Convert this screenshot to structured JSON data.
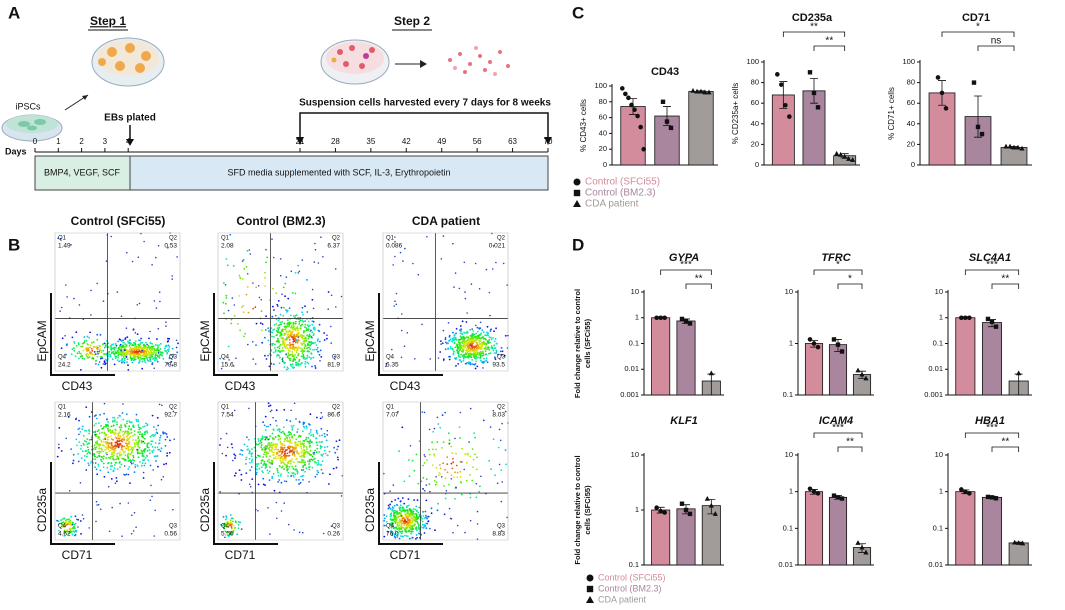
{
  "panel_labels": [
    "A",
    "B",
    "C",
    "D"
  ],
  "panel_a": {
    "step1": "Step 1",
    "step2": "Step 2",
    "ipscs": "iPSCs",
    "ebs": "EBs plated",
    "harvest": "Suspension cells harvested every 7 days for 8 weeks",
    "days_label": "Days",
    "days": [
      0,
      1,
      2,
      3,
      4,
      21,
      28,
      35,
      42,
      49,
      56,
      63,
      70
    ],
    "phase1": "BMP4, VEGF, SCF",
    "phase2": "SFD media supplemented with SCF, IL-3, Erythropoietin"
  },
  "panel_b": {
    "columns": [
      "Control (SFCi55)",
      "Control (BM2.3)",
      "CDA patient"
    ],
    "plots": [
      {
        "x_label": "CD43",
        "y_label": "EpCAM",
        "quadrants": [
          {
            "name": "Q1",
            "value": "1.49"
          },
          {
            "name": "Q2",
            "value": "0.53"
          },
          {
            "name": "Q4",
            "value": "24.2"
          },
          {
            "name": "Q3",
            "value": "73.8"
          }
        ]
      },
      {
        "x_label": "CD43",
        "y_label": "EpCAM",
        "quadrants": [
          {
            "name": "Q1",
            "value": "2.08"
          },
          {
            "name": "Q2",
            "value": "6.37"
          },
          {
            "name": "Q4",
            "value": "15.6"
          },
          {
            "name": "Q3",
            "value": "81.9"
          }
        ]
      },
      {
        "x_label": "CD43",
        "y_label": "EpCAM",
        "quadrants": [
          {
            "name": "Q1",
            "value": "0.086"
          },
          {
            "name": "Q2",
            "value": "0.021"
          },
          {
            "name": "Q4",
            "value": "6.35"
          },
          {
            "name": "Q3",
            "value": "93.5"
          }
        ]
      },
      {
        "x_label": "CD71",
        "y_label": "CD235a",
        "quadrants": [
          {
            "name": "Q1",
            "value": "2.16"
          },
          {
            "name": "Q2",
            "value": "92.7"
          },
          {
            "name": "Q4",
            "value": "4.62"
          },
          {
            "name": "Q3",
            "value": "0.56"
          }
        ]
      },
      {
        "x_label": "CD71",
        "y_label": "CD235a",
        "quadrants": [
          {
            "name": "Q1",
            "value": "7.54"
          },
          {
            "name": "Q2",
            "value": "86.6"
          },
          {
            "name": "Q4",
            "value": "5.56"
          },
          {
            "name": "Q3",
            "value": "0.26"
          }
        ]
      },
      {
        "x_label": "CD71",
        "y_label": "CD235a",
        "quadrants": [
          {
            "name": "Q1",
            "value": "7.07"
          },
          {
            "name": "Q2",
            "value": "8.03"
          },
          {
            "name": "Q4",
            "value": "76.0"
          },
          {
            "name": "Q3",
            "value": "8.83"
          }
        ]
      }
    ]
  },
  "chart_data": [
    {
      "type": "bar",
      "title": "CD43",
      "ylabel": [
        "% CD43+ cells"
      ],
      "ylim": [
        0,
        100
      ],
      "yticks": [
        0,
        20,
        40,
        60,
        80,
        100
      ],
      "series": [
        {
          "name": "Control (SFCi55)",
          "color": "#d38c9c",
          "values": [
            74
          ],
          "errors": [
            10
          ],
          "points": [
            97,
            90,
            85,
            76,
            70,
            62,
            48,
            20
          ]
        },
        {
          "name": "Control (BM2.3)",
          "color": "#a9869e",
          "values": [
            62
          ],
          "errors": [
            12
          ],
          "points": [
            80,
            55,
            47
          ]
        },
        {
          "name": "CDA patient",
          "color": "#a19b99",
          "values": [
            93
          ],
          "errors": [
            1
          ],
          "points": [
            94,
            93,
            93,
            92,
            92
          ]
        }
      ]
    },
    {
      "type": "bar",
      "title": "CD235a",
      "ylabel": [
        "% CD235a+ cells"
      ],
      "ylim": [
        0,
        100
      ],
      "yticks": [
        0,
        20,
        40,
        60,
        80,
        100
      ],
      "significance": [
        {
          "from": 0,
          "to": 2,
          "label": "**"
        },
        {
          "from": 1,
          "to": 2,
          "label": "**"
        }
      ],
      "series": [
        {
          "name": "Control (SFCi55)",
          "color": "#d38c9c",
          "values": [
            68
          ],
          "errors": [
            13
          ],
          "points": [
            88,
            78,
            58,
            47
          ]
        },
        {
          "name": "Control (BM2.3)",
          "color": "#a9869e",
          "values": [
            72
          ],
          "errors": [
            12
          ],
          "points": [
            90,
            70,
            56
          ]
        },
        {
          "name": "CDA patient",
          "color": "#a19b99",
          "values": [
            9
          ],
          "errors": [
            2
          ],
          "points": [
            11,
            10,
            8,
            6,
            5
          ]
        }
      ]
    },
    {
      "type": "bar",
      "title": "CD71",
      "ylabel": [
        "% CD71+ cells"
      ],
      "ylim": [
        0,
        100
      ],
      "yticks": [
        0,
        20,
        40,
        60,
        80,
        100
      ],
      "significance": [
        {
          "from": 0,
          "to": 2,
          "label": "*"
        },
        {
          "from": 1,
          "to": 2,
          "label": "ns"
        }
      ],
      "series": [
        {
          "name": "Control (SFCi55)",
          "color": "#d38c9c",
          "values": [
            70
          ],
          "errors": [
            12
          ],
          "points": [
            85,
            70,
            55
          ]
        },
        {
          "name": "Control (BM2.3)",
          "color": "#a9869e",
          "values": [
            47
          ],
          "errors": [
            20
          ],
          "points": [
            80,
            37,
            30
          ]
        },
        {
          "name": "CDA patient",
          "color": "#a19b99",
          "values": [
            17
          ],
          "errors": [
            1
          ],
          "points": [
            18,
            18,
            17,
            17,
            16
          ]
        }
      ]
    },
    {
      "type": "bar",
      "log": true,
      "title": "GYPA",
      "ylabel": [
        "Fold change relative to control",
        "cells (SFCi55)"
      ],
      "ylim": [
        0.001,
        10
      ],
      "yticks": [
        0.001,
        0.01,
        0.1,
        1,
        10
      ],
      "significance": [
        {
          "from": 0,
          "to": 2,
          "label": "***"
        },
        {
          "from": 1,
          "to": 2,
          "label": "**"
        }
      ],
      "series": [
        {
          "name": "Control (SFCi55)",
          "color": "#d38c9c",
          "values": [
            1
          ],
          "errors": [
            0.05
          ],
          "points": [
            1,
            1,
            1
          ]
        },
        {
          "name": "Control (BM2.3)",
          "color": "#a9869e",
          "values": [
            0.75
          ],
          "errors": [
            0.15
          ],
          "points": [
            0.9,
            0.75,
            0.6
          ]
        },
        {
          "name": "CDA patient",
          "color": "#a19b99",
          "values": [
            0.0035
          ],
          "errors": [
            0.003
          ],
          "points": [
            0.007
          ]
        }
      ]
    },
    {
      "type": "bar",
      "log": true,
      "title": "TFRC",
      "ylim": [
        0.1,
        10
      ],
      "yticks": [
        0.1,
        1,
        10
      ],
      "significance": [
        {
          "from": 0,
          "to": 2,
          "label": "*"
        },
        {
          "from": 1,
          "to": 2,
          "label": "*"
        }
      ],
      "series": [
        {
          "name": "Control (SFCi55)",
          "color": "#d38c9c",
          "values": [
            1
          ],
          "errors": [
            0.15
          ],
          "points": [
            1.2,
            1,
            0.85
          ]
        },
        {
          "name": "Control (BM2.3)",
          "color": "#a9869e",
          "values": [
            0.95
          ],
          "errors": [
            0.25
          ],
          "points": [
            1.2,
            0.95,
            0.7
          ]
        },
        {
          "name": "CDA patient",
          "color": "#a19b99",
          "values": [
            0.25
          ],
          "errors": [
            0.04
          ],
          "points": [
            0.3,
            0.25,
            0.21
          ]
        }
      ]
    },
    {
      "type": "bar",
      "log": true,
      "title": "SLC4A1",
      "ylim": [
        0.001,
        10
      ],
      "yticks": [
        0.001,
        0.01,
        0.1,
        1,
        10
      ],
      "significance": [
        {
          "from": 0,
          "to": 2,
          "label": "***"
        },
        {
          "from": 1,
          "to": 2,
          "label": "**"
        }
      ],
      "series": [
        {
          "name": "Control (SFCi55)",
          "color": "#d38c9c",
          "values": [
            1
          ],
          "errors": [
            0.05
          ],
          "points": [
            1,
            1,
            1
          ]
        },
        {
          "name": "Control (BM2.3)",
          "color": "#a9869e",
          "values": [
            0.65
          ],
          "errors": [
            0.2
          ],
          "points": [
            0.9,
            0.7,
            0.45
          ]
        },
        {
          "name": "CDA patient",
          "color": "#a19b99",
          "values": [
            0.0035
          ],
          "errors": [
            0.003
          ],
          "points": [
            0.007
          ]
        }
      ]
    },
    {
      "type": "bar",
      "log": true,
      "title": "KLF1",
      "ylabel": [
        "Fold change relative to control",
        "cells (SFCi55)"
      ],
      "ylim": [
        0.1,
        10
      ],
      "yticks": [
        0.1,
        1,
        10
      ],
      "series": [
        {
          "name": "Control (SFCi55)",
          "color": "#d38c9c",
          "values": [
            1
          ],
          "errors": [
            0.12
          ],
          "points": [
            1.1,
            0.95,
            0.9
          ]
        },
        {
          "name": "Control (BM2.3)",
          "color": "#a9869e",
          "values": [
            1.05
          ],
          "errors": [
            0.2
          ],
          "points": [
            1.3,
            1,
            0.85
          ]
        },
        {
          "name": "CDA patient",
          "color": "#a19b99",
          "values": [
            1.2
          ],
          "errors": [
            0.35
          ],
          "points": [
            1.6,
            1.2,
            0.85
          ]
        }
      ]
    },
    {
      "type": "bar",
      "log": true,
      "title": "ICAM4",
      "ylim": [
        0.01,
        10
      ],
      "yticks": [
        0.01,
        0.1,
        1,
        10
      ],
      "significance": [
        {
          "from": 0,
          "to": 2,
          "label": "***"
        },
        {
          "from": 1,
          "to": 2,
          "label": "**"
        }
      ],
      "series": [
        {
          "name": "Control (SFCi55)",
          "color": "#d38c9c",
          "values": [
            1
          ],
          "errors": [
            0.15
          ],
          "points": [
            1.2,
            1,
            0.9
          ]
        },
        {
          "name": "Control (BM2.3)",
          "color": "#a9869e",
          "values": [
            0.7
          ],
          "errors": [
            0.08
          ],
          "points": [
            0.78,
            0.7,
            0.65
          ]
        },
        {
          "name": "CDA patient",
          "color": "#a19b99",
          "values": [
            0.03
          ],
          "errors": [
            0.008
          ],
          "points": [
            0.04,
            0.03,
            0.022
          ]
        }
      ]
    },
    {
      "type": "bar",
      "log": true,
      "title": "HBA1",
      "ylim": [
        0.01,
        10
      ],
      "yticks": [
        0.01,
        0.1,
        1,
        10
      ],
      "significance": [
        {
          "from": 0,
          "to": 2,
          "label": "***"
        },
        {
          "from": 1,
          "to": 2,
          "label": "**"
        }
      ],
      "series": [
        {
          "name": "Control (SFCi55)",
          "color": "#d38c9c",
          "values": [
            1
          ],
          "errors": [
            0.12
          ],
          "points": [
            1.15,
            1,
            0.9
          ]
        },
        {
          "name": "Control (BM2.3)",
          "color": "#a9869e",
          "values": [
            0.7
          ],
          "errors": [
            0.05
          ],
          "points": [
            0.72,
            0.7,
            0.66
          ]
        },
        {
          "name": "CDA patient",
          "color": "#a19b99",
          "values": [
            0.04
          ],
          "errors": [
            0.002
          ],
          "points": [
            0.041,
            0.04,
            0.039
          ]
        }
      ]
    }
  ]
}
